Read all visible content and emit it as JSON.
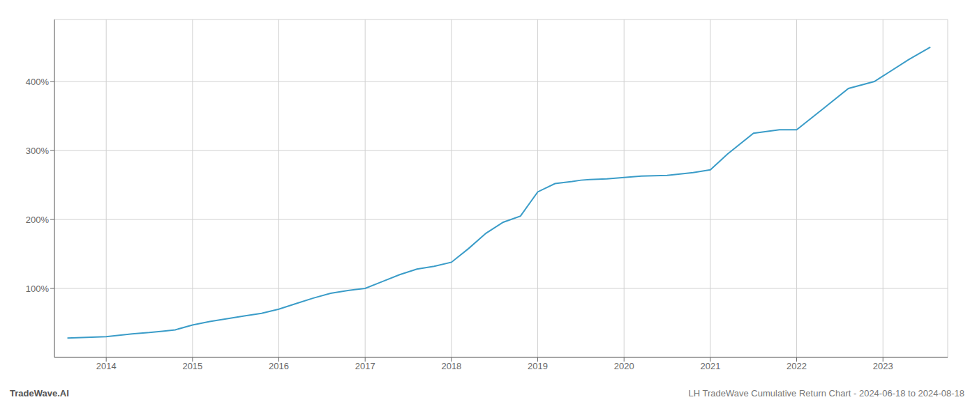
{
  "chart_data": {
    "type": "line",
    "annotations": [
      "TradeWave.AI",
      "LH TradeWave Cumulative Return Chart - 2024-06-18 to 2024-08-18"
    ],
    "x": [
      2013.55,
      2014.0,
      2014.15,
      2014.3,
      2014.5,
      2014.65,
      2014.8,
      2015.0,
      2015.2,
      2015.4,
      2015.6,
      2015.8,
      2016.0,
      2016.2,
      2016.4,
      2016.6,
      2016.8,
      2017.0,
      2017.2,
      2017.4,
      2017.6,
      2017.8,
      2018.0,
      2018.2,
      2018.4,
      2018.6,
      2018.8,
      2019.0,
      2019.2,
      2019.4,
      2019.5,
      2019.6,
      2019.8,
      2020.0,
      2020.2,
      2020.5,
      2020.8,
      2021.0,
      2021.2,
      2021.5,
      2021.8,
      2022.0,
      2022.3,
      2022.6,
      2022.9,
      2023.0,
      2023.3,
      2023.55
    ],
    "values": [
      28,
      30,
      32,
      34,
      36,
      38,
      40,
      47,
      52,
      56,
      60,
      64,
      70,
      78,
      86,
      93,
      97,
      100,
      110,
      120,
      128,
      132,
      138,
      158,
      180,
      196,
      205,
      240,
      252,
      255,
      257,
      258,
      259,
      261,
      263,
      264,
      268,
      272,
      295,
      325,
      330,
      330,
      360,
      390,
      400,
      408,
      432,
      450
    ],
    "color": "#3a9cc8",
    "xlim": [
      2013.4,
      2023.75
    ],
    "xticks": [
      2014,
      2015,
      2016,
      2017,
      2018,
      2019,
      2020,
      2021,
      2022,
      2023
    ],
    "ylim": [
      0,
      490
    ],
    "yticks": [
      {
        "value": 100,
        "label": "100%"
      },
      {
        "value": 200,
        "label": "200%"
      },
      {
        "value": 300,
        "label": "300%"
      },
      {
        "value": 400,
        "label": "400%"
      }
    ],
    "grid": true
  }
}
